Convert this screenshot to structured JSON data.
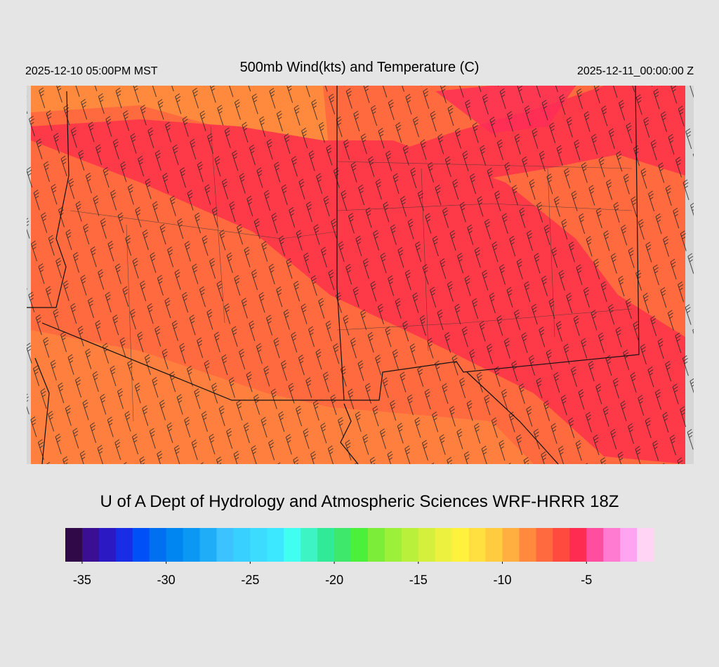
{
  "header": {
    "left_time": "2025-12-10 05:00PM MST",
    "title": "500mb Wind(kts) and Temperature (C)",
    "right_time": "2025-12-11_00:00:00 Z"
  },
  "footer": "U of A Dept of Hydrology and Atmospheric Sciences WRF-HRRR 18Z",
  "colorbar": {
    "lim": [
      -36,
      -1
    ],
    "ticks": [
      -35,
      -30,
      -25,
      -20,
      -15,
      -10,
      -5
    ],
    "colors": [
      "#300a48",
      "#3a0f94",
      "#2b19c4",
      "#1a2de6",
      "#0050f8",
      "#0070f0",
      "#0086f0",
      "#0a98f4",
      "#20adf8",
      "#3cc3ff",
      "#38d0ff",
      "#3cdcff",
      "#3ce8ff",
      "#40fff0",
      "#3cf4c4",
      "#30ea98",
      "#3ee86a",
      "#4af03a",
      "#7cee3a",
      "#9cf03a",
      "#b8f03c",
      "#d4f03c",
      "#ecf03e",
      "#fff23c",
      "#ffe040",
      "#ffcc40",
      "#ffae40",
      "#ff8a3e",
      "#ff6a3e",
      "#ff4a40",
      "#ff2c52",
      "#ff4ea0",
      "#ff7ad0",
      "#ffa4f0",
      "#ffd4f4"
    ]
  }
}
